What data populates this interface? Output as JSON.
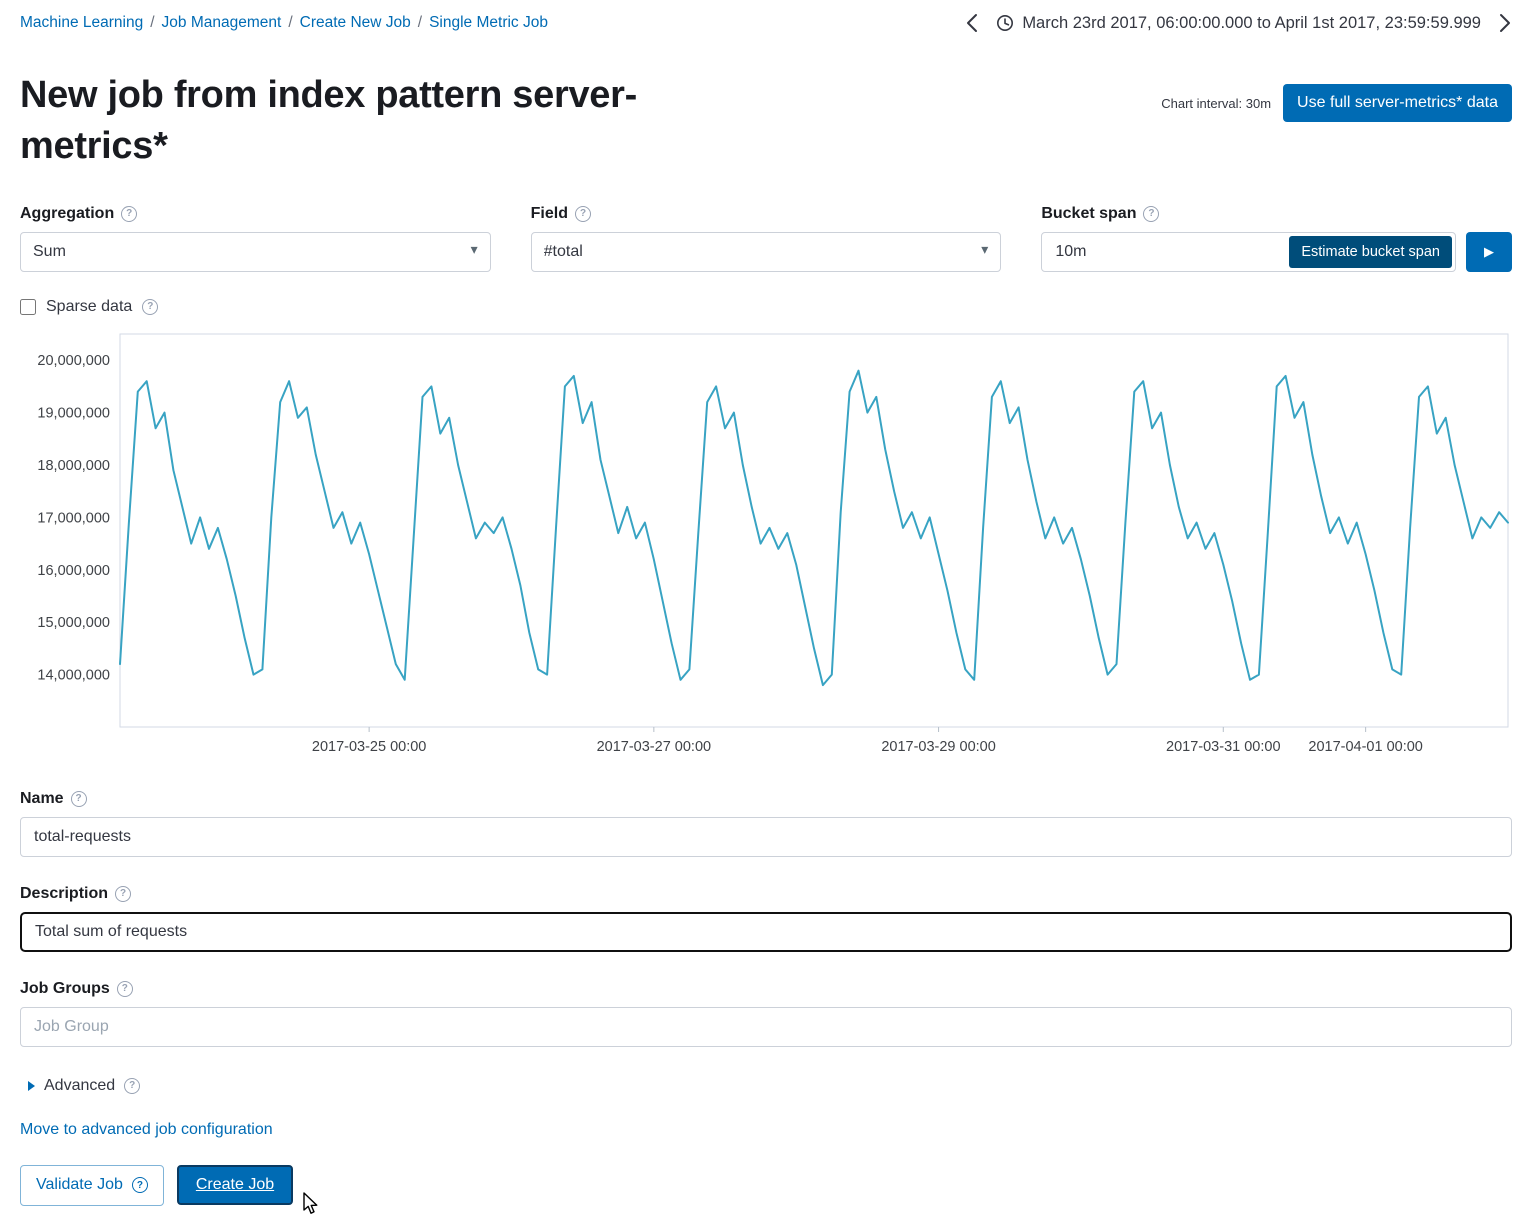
{
  "breadcrumb": {
    "separator": "/",
    "items": [
      {
        "label": "Machine Learning"
      },
      {
        "label": "Job Management"
      },
      {
        "label": "Create New Job"
      },
      {
        "label": "Single Metric Job"
      }
    ]
  },
  "timebar": {
    "range": "March 23rd 2017, 06:00:00.000 to April 1st 2017, 23:59:59.999"
  },
  "header": {
    "title": "New job from index pattern server-metrics*",
    "chart_interval_label": "Chart interval: 30m",
    "use_full_data_button": "Use full server-metrics* data"
  },
  "form": {
    "aggregation": {
      "label": "Aggregation",
      "value": "Sum"
    },
    "field": {
      "label": "Field",
      "value": "#total"
    },
    "bucket_span": {
      "label": "Bucket span",
      "value": "10m",
      "estimate_button": "Estimate bucket span"
    },
    "sparse_data": {
      "label": "Sparse data",
      "checked": false
    },
    "name": {
      "label": "Name",
      "value": "total-requests"
    },
    "description": {
      "label": "Description",
      "value": "Total sum of requests"
    },
    "job_groups": {
      "label": "Job Groups",
      "placeholder": "Job Group"
    },
    "advanced": {
      "label": "Advanced"
    },
    "move_link": "Move to advanced job configuration",
    "validate_button": "Validate Job",
    "create_button": "Create Job"
  },
  "glyphs": {
    "help": "?",
    "caret": "▾",
    "play": "▶"
  },
  "colors": {
    "primary": "#006bb4",
    "link": "#006bb4",
    "estimate_button": "#004d7a",
    "chart_line": "#38a3c3",
    "focus_border": "#006bb4"
  },
  "chart_data": {
    "type": "line",
    "title": "",
    "xlabel": "",
    "ylabel": "",
    "x_start": "2017-03-23 06:00",
    "x_end": "2017-04-01 23:59",
    "x_step_hours": 1.5,
    "total_hours": 234,
    "y_unit": "millions",
    "ylim": [
      13.0,
      20.5
    ],
    "y_tick_values": [
      14,
      15,
      16,
      17,
      18,
      19,
      20
    ],
    "y_ticks": [
      "14,000,000",
      "15,000,000",
      "16,000,000",
      "17,000,000",
      "18,000,000",
      "19,000,000",
      "20,000,000"
    ],
    "x_tick_labels": [
      "2017-03-25 00:00",
      "2017-03-27 00:00",
      "2017-03-29 00:00",
      "2017-03-31 00:00",
      "2017-04-01 00:00"
    ],
    "x_tick_hours_from_start": [
      42,
      90,
      138,
      186,
      210
    ],
    "grid": false,
    "legend": false,
    "line_color": "#38a3c3",
    "values_millions": [
      14.2,
      16.9,
      19.4,
      19.6,
      18.7,
      19.0,
      17.9,
      17.2,
      16.5,
      17.0,
      16.4,
      16.8,
      16.2,
      15.5,
      14.7,
      14.0,
      14.1,
      17.0,
      19.2,
      19.6,
      18.9,
      19.1,
      18.2,
      17.5,
      16.8,
      17.1,
      16.5,
      16.9,
      16.3,
      15.6,
      14.9,
      14.2,
      13.9,
      16.6,
      19.3,
      19.5,
      18.6,
      18.9,
      18.0,
      17.3,
      16.6,
      16.9,
      16.7,
      17.0,
      16.4,
      15.7,
      14.8,
      14.1,
      14.0,
      16.8,
      19.5,
      19.7,
      18.8,
      19.2,
      18.1,
      17.4,
      16.7,
      17.2,
      16.6,
      16.9,
      16.2,
      15.4,
      14.6,
      13.9,
      14.1,
      16.7,
      19.2,
      19.5,
      18.7,
      19.0,
      18.0,
      17.2,
      16.5,
      16.8,
      16.4,
      16.7,
      16.1,
      15.3,
      14.5,
      13.8,
      14.0,
      17.1,
      19.4,
      19.8,
      19.0,
      19.3,
      18.3,
      17.5,
      16.8,
      17.1,
      16.6,
      17.0,
      16.3,
      15.6,
      14.8,
      14.1,
      13.9,
      16.8,
      19.3,
      19.6,
      18.8,
      19.1,
      18.1,
      17.3,
      16.6,
      17.0,
      16.5,
      16.8,
      16.2,
      15.5,
      14.7,
      14.0,
      14.2,
      16.9,
      19.4,
      19.6,
      18.7,
      19.0,
      18.0,
      17.2,
      16.6,
      16.9,
      16.4,
      16.7,
      16.1,
      15.4,
      14.6,
      13.9,
      14.0,
      16.7,
      19.5,
      19.7,
      18.9,
      19.2,
      18.2,
      17.4,
      16.7,
      17.0,
      16.5,
      16.9,
      16.3,
      15.6,
      14.8,
      14.1,
      14.0,
      16.8,
      19.3,
      19.5,
      18.6,
      18.9,
      18.0,
      17.3,
      16.6,
      17.0,
      16.8,
      17.1,
      16.9
    ]
  }
}
